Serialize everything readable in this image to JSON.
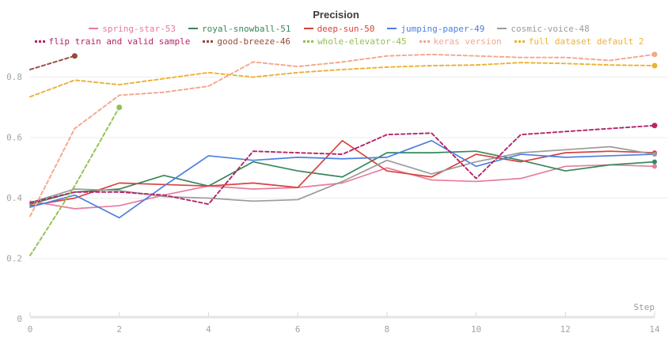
{
  "title": "Precision",
  "axis": {
    "x_label": "Step",
    "x_tick_labels": [
      "0",
      "2",
      "4",
      "6",
      "8",
      "10",
      "12",
      "14"
    ],
    "x_tick_steps": [
      0,
      2,
      4,
      6,
      8,
      10,
      12,
      14
    ],
    "y_tick_labels": [
      "0.2",
      "0.4",
      "0.6",
      "0.8"
    ],
    "y_tick_values": [
      0.2,
      0.4,
      0.6,
      0.8
    ],
    "y_zero_label": "0",
    "label_color": "#a3a3a3",
    "gridline_color": "#ededed",
    "axis_band_color": "#e4e4e4",
    "tick_mark_color": "#d6d6d6"
  },
  "chart_data": {
    "type": "line",
    "title": "Precision",
    "xlabel": "Step",
    "x_range": [
      0,
      14
    ],
    "ylim": [
      0,
      0.92
    ],
    "y_gridlines": [
      0.2,
      0.4,
      0.6,
      0.8
    ],
    "grid": true,
    "legend_position": "top",
    "x_step": 1,
    "series": [
      {
        "name": "spring-star-53",
        "color": "#e87b9e",
        "style": "solid",
        "values": [
          0.39,
          0.365,
          0.375,
          0.41,
          0.44,
          0.43,
          0.435,
          0.45,
          0.5,
          0.46,
          0.455,
          0.465,
          0.505,
          0.51,
          0.505
        ]
      },
      {
        "name": "royal-snowball-51",
        "color": "#37875a",
        "style": "solid",
        "values": [
          0.38,
          0.42,
          0.43,
          0.475,
          0.44,
          0.52,
          0.49,
          0.47,
          0.55,
          0.55,
          0.555,
          0.525,
          0.49,
          0.51,
          0.52
        ]
      },
      {
        "name": "deep-sun-50",
        "color": "#d8423d",
        "style": "solid",
        "values": [
          0.375,
          0.4,
          0.45,
          0.445,
          0.44,
          0.45,
          0.435,
          0.59,
          0.49,
          0.47,
          0.545,
          0.52,
          0.55,
          0.555,
          0.55
        ]
      },
      {
        "name": "jumping-paper-49",
        "color": "#4c7fe0",
        "style": "solid",
        "values": [
          0.37,
          0.41,
          0.335,
          0.44,
          0.54,
          0.525,
          0.535,
          0.53,
          0.535,
          0.59,
          0.505,
          0.545,
          0.535,
          0.54,
          0.545
        ]
      },
      {
        "name": "cosmic-voice-48",
        "color": "#9b9b9b",
        "style": "solid",
        "values": [
          0.385,
          0.43,
          0.425,
          0.405,
          0.4,
          0.39,
          0.395,
          0.455,
          0.525,
          0.48,
          0.52,
          0.55,
          0.56,
          0.57,
          0.545
        ]
      },
      {
        "name": "flip train and valid sample",
        "color": "#b42569",
        "style": "dashed",
        "values": [
          0.385,
          0.42,
          0.42,
          0.41,
          0.38,
          0.555,
          0.55,
          0.545,
          0.61,
          0.615,
          0.465,
          0.61,
          0.62,
          0.63,
          0.64
        ]
      },
      {
        "name": "good-breeze-46",
        "color": "#99493b",
        "style": "dashed",
        "values": [
          0.825,
          0.87
        ]
      },
      {
        "name": "whole-elevator-45",
        "color": "#92c052",
        "style": "dashed",
        "values": [
          0.21,
          0.44,
          0.7
        ]
      },
      {
        "name": "keras version",
        "color": "#f4a68c",
        "style": "dashed",
        "values": [
          0.34,
          0.63,
          0.74,
          0.75,
          0.77,
          0.85,
          0.835,
          0.85,
          0.87,
          0.875,
          0.87,
          0.865,
          0.865,
          0.855,
          0.875
        ]
      },
      {
        "name": "full dataset default 2",
        "color": "#ecb134",
        "style": "dashed",
        "values": [
          0.735,
          0.79,
          0.775,
          0.795,
          0.815,
          0.8,
          0.815,
          0.825,
          0.833,
          0.838,
          0.84,
          0.848,
          0.845,
          0.84,
          0.838
        ]
      }
    ]
  }
}
